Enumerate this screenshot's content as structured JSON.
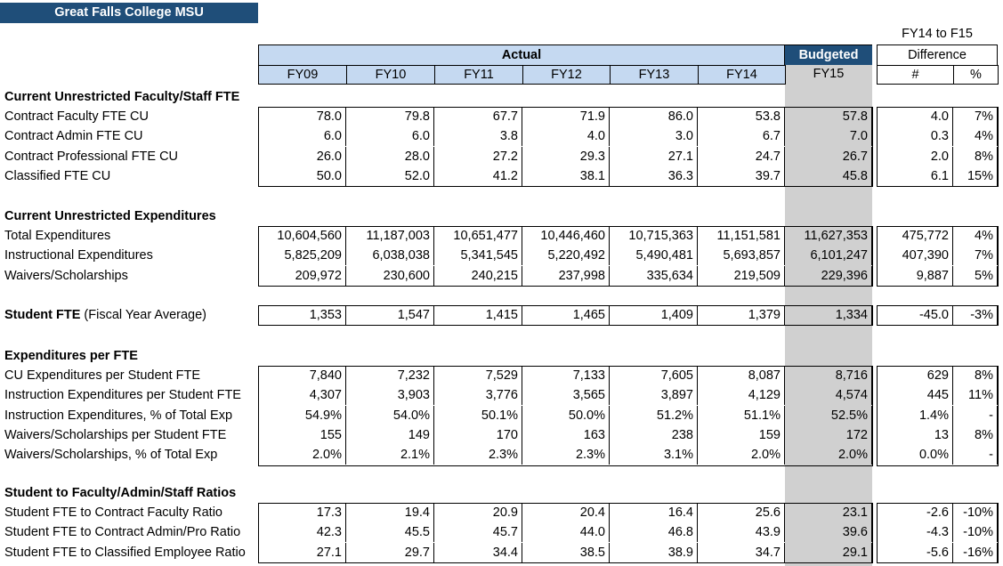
{
  "title": "Great Falls College MSU",
  "headers": {
    "actual": "Actual",
    "budgeted": "Budgeted",
    "diff_top": "FY14 to F15",
    "difference": "Difference",
    "years": [
      "FY09",
      "FY10",
      "FY11",
      "FY12",
      "FY13",
      "FY14"
    ],
    "budget_year": "FY15",
    "diff_cols": [
      "#",
      "%"
    ]
  },
  "sections": [
    {
      "title": "Current Unrestricted Faculty/Staff FTE",
      "rows": [
        {
          "label": "Contract Faculty FTE CU",
          "values": [
            "78.0",
            "79.8",
            "67.7",
            "71.9",
            "86.0",
            "53.8",
            "57.8",
            "4.0",
            "7%"
          ]
        },
        {
          "label": "Contract Admin FTE CU",
          "values": [
            "6.0",
            "6.0",
            "3.8",
            "4.0",
            "3.0",
            "6.7",
            "7.0",
            "0.3",
            "4%"
          ]
        },
        {
          "label": "Contract Professional FTE CU",
          "values": [
            "26.0",
            "28.0",
            "27.2",
            "29.3",
            "27.1",
            "24.7",
            "26.7",
            "2.0",
            "8%"
          ]
        },
        {
          "label": "Classified FTE CU",
          "values": [
            "50.0",
            "52.0",
            "41.2",
            "38.1",
            "36.3",
            "39.7",
            "45.8",
            "6.1",
            "15%"
          ]
        }
      ]
    },
    {
      "title": "Current Unrestricted Expenditures",
      "rows": [
        {
          "label": "Total Expenditures",
          "values": [
            "10,604,560",
            "11,187,003",
            "10,651,477",
            "10,446,460",
            "10,715,363",
            "11,151,581",
            "11,627,353",
            "475,772",
            "4%"
          ]
        },
        {
          "label": "Instructional Expenditures",
          "values": [
            "5,825,209",
            "6,038,038",
            "5,341,545",
            "5,220,492",
            "5,490,481",
            "5,693,857",
            "6,101,247",
            "407,390",
            "7%"
          ]
        },
        {
          "label": "Waivers/Scholarships",
          "values": [
            "209,972",
            "230,600",
            "240,215",
            "237,998",
            "335,634",
            "219,509",
            "229,396",
            "9,887",
            "5%"
          ]
        }
      ]
    },
    {
      "title": "",
      "rows": [
        {
          "label_bold": "Student FTE",
          "label_rest": " (Fiscal Year Average)",
          "values": [
            "1,353",
            "1,547",
            "1,415",
            "1,465",
            "1,409",
            "1,379",
            "1,334",
            "-45.0",
            "-3%"
          ]
        }
      ]
    },
    {
      "title": "Expenditures per FTE",
      "rows": [
        {
          "label": "CU Expenditures per Student FTE",
          "values": [
            "7,840",
            "7,232",
            "7,529",
            "7,133",
            "7,605",
            "8,087",
            "8,716",
            "629",
            "8%"
          ]
        },
        {
          "label": "Instruction Expenditures per Student FTE",
          "values": [
            "4,307",
            "3,903",
            "3,776",
            "3,565",
            "3,897",
            "4,129",
            "4,574",
            "445",
            "11%"
          ]
        },
        {
          "label": "Instruction Expenditures, % of Total Exp",
          "values": [
            "54.9%",
            "54.0%",
            "50.1%",
            "50.0%",
            "51.2%",
            "51.1%",
            "52.5%",
            "1.4%",
            "-"
          ]
        },
        {
          "label": "Waivers/Scholarships per Student FTE",
          "values": [
            "155",
            "149",
            "170",
            "163",
            "238",
            "159",
            "172",
            "13",
            "8%"
          ]
        },
        {
          "label": "Waivers/Scholarships, % of Total Exp",
          "values": [
            "2.0%",
            "2.1%",
            "2.3%",
            "2.3%",
            "3.1%",
            "2.0%",
            "2.0%",
            "0.0%",
            "-"
          ]
        }
      ]
    },
    {
      "title": "Student to Faculty/Admin/Staff Ratios",
      "rows": [
        {
          "label": "Student FTE to Contract Faculty Ratio",
          "values": [
            "17.3",
            "19.4",
            "20.9",
            "20.4",
            "16.4",
            "25.6",
            "23.1",
            "-2.6",
            "-10%"
          ]
        },
        {
          "label": "Student FTE to Contract Admin/Pro Ratio",
          "values": [
            "42.3",
            "45.5",
            "45.7",
            "44.0",
            "46.8",
            "43.9",
            "39.6",
            "-4.3",
            "-10%"
          ]
        },
        {
          "label": "Student FTE to Classified Employee Ratio",
          "values": [
            "27.1",
            "29.7",
            "34.4",
            "38.5",
            "38.9",
            "34.7",
            "29.1",
            "-5.6",
            "-16%"
          ]
        }
      ]
    }
  ]
}
